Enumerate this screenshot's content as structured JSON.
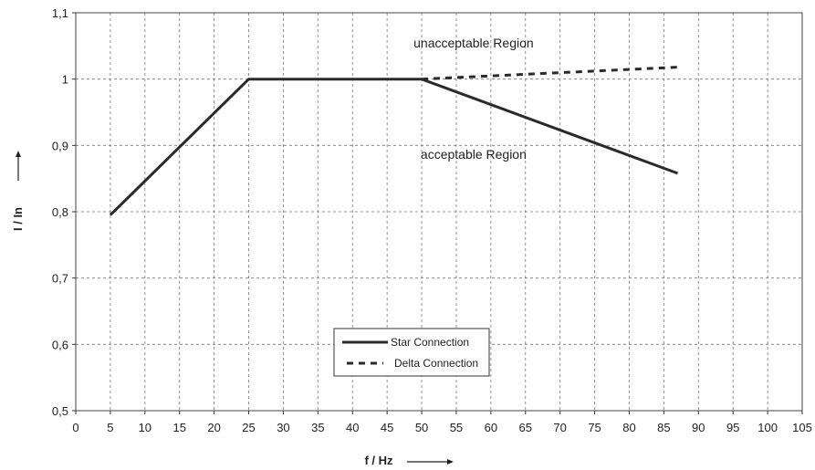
{
  "chart_data": {
    "type": "line",
    "xlabel": "f / Hz",
    "ylabel": "I / In",
    "xlim": [
      0,
      105
    ],
    "ylim": [
      0.5,
      1.1
    ],
    "x_ticks": [
      "0",
      "5",
      "10",
      "15",
      "20",
      "25",
      "30",
      "35",
      "40",
      "45",
      "50",
      "55",
      "60",
      "65",
      "70",
      "75",
      "80",
      "85",
      "90",
      "95",
      "100",
      "105"
    ],
    "y_ticks": [
      "0,5",
      "0,6",
      "0,7",
      "0,8",
      "0,9",
      "1",
      "1,1"
    ],
    "grid": true,
    "legend_position": "bottom-center",
    "annotations": [
      {
        "text": "unacceptable Region",
        "x": 57.5,
        "y": 1.048
      },
      {
        "text": "acceptable Region",
        "x": 57.5,
        "y": 0.88
      }
    ],
    "series": [
      {
        "name": "Star Connection",
        "style": "solid",
        "color": "#2a2a2a",
        "x": [
          5,
          25,
          50,
          87
        ],
        "y": [
          0.795,
          1.0,
          1.0,
          0.858
        ]
      },
      {
        "name": "Delta Connection",
        "style": "dashed",
        "color": "#2a2a2a",
        "x": [
          50,
          87
        ],
        "y": [
          1.0,
          1.018
        ]
      }
    ]
  }
}
